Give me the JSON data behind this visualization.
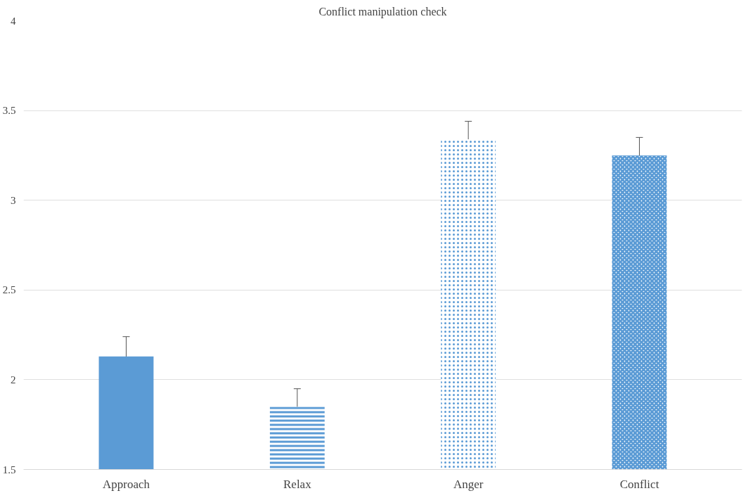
{
  "chart_data": {
    "type": "bar",
    "title": "Conflict manipulation check",
    "categories": [
      "Approach",
      "Relax",
      "Anger",
      "Conflict"
    ],
    "values": [
      2.13,
      1.85,
      3.34,
      3.25
    ],
    "errors": [
      0.11,
      0.1,
      0.1,
      0.1
    ],
    "colors": [
      "#5b9bd5",
      "#5b9bd5",
      "#5b9bd5",
      "#5b9bd5"
    ],
    "ylim": [
      1.5,
      4
    ],
    "yticks": [
      1.5,
      2,
      2.5,
      3,
      3.5,
      4
    ],
    "grid": "y"
  }
}
